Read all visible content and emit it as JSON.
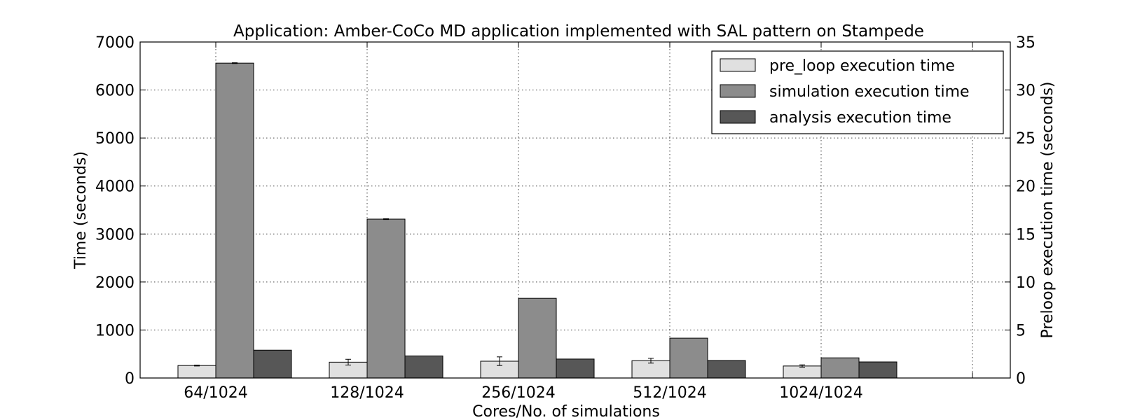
{
  "chart_data": {
    "type": "bar",
    "title": "Application: Amber-CoCo MD application implemented with SAL pattern on Stampede",
    "xlabel": "Cores/No. of simulations",
    "ylabel": "Time (seconds)",
    "ylabel_right": "Preloop execution time (seconds)",
    "categories": [
      "64/1024",
      "128/1024",
      "256/1024",
      "512/1024",
      "1024/1024"
    ],
    "ylim": [
      0,
      7000
    ],
    "ylim_right": [
      0,
      35
    ],
    "yticks": [
      0,
      1000,
      2000,
      3000,
      4000,
      5000,
      6000,
      7000
    ],
    "yticks_right": [
      0,
      5,
      10,
      15,
      20,
      25,
      30,
      35
    ],
    "grid": true,
    "legend_position": "top-right",
    "series": [
      {
        "name": "pre_loop execution time",
        "axis": "right",
        "color": "#e0e0e0",
        "values": [
          1.3,
          1.65,
          1.75,
          1.8,
          1.25
        ],
        "errors": [
          0.05,
          0.3,
          0.45,
          0.25,
          0.12
        ]
      },
      {
        "name": "simulation execution time",
        "axis": "left",
        "color": "#8c8c8c",
        "values": [
          6560,
          3310,
          1660,
          830,
          420
        ],
        "errors": [
          8,
          8,
          0,
          0,
          0
        ]
      },
      {
        "name": "analysis execution time",
        "axis": "left",
        "color": "#575757",
        "values": [
          580,
          460,
          395,
          365,
          335
        ],
        "errors": [
          0,
          0,
          0,
          0,
          0
        ]
      }
    ]
  }
}
